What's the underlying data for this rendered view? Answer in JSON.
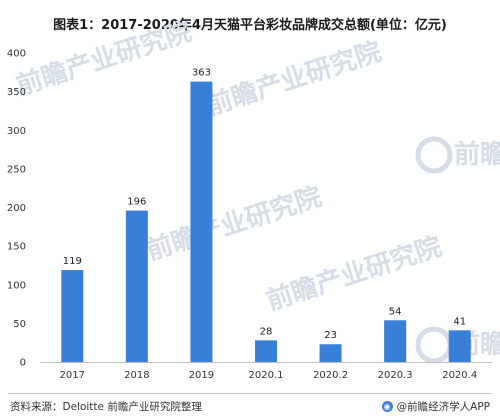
{
  "chart_data": {
    "type": "bar",
    "title": "图表1：2017-2020年4月天猫平台彩妆品牌成交总额(单位：亿元)",
    "categories": [
      "2017",
      "2018",
      "2019",
      "2020.1",
      "2020.2",
      "2020.3",
      "2020.4"
    ],
    "values": [
      119,
      196,
      363,
      28,
      23,
      54,
      41
    ],
    "data_labels": [
      "119",
      "196",
      "363",
      "28",
      "23",
      "54",
      "41"
    ],
    "ylim": [
      0,
      400
    ],
    "yticks": [
      0,
      50,
      100,
      150,
      200,
      250,
      300,
      350,
      400
    ],
    "grid": false,
    "bar_color": "#3a7fd6"
  },
  "watermark": {
    "text": "前瞻产业研究院",
    "logo_text": "前瞻"
  },
  "footer": {
    "source": "资料来源：Deloitte 前瞻产业研究院整理",
    "brand": "@前瞻经济学人APP",
    "brand_icon": "circle-logo-icon"
  }
}
